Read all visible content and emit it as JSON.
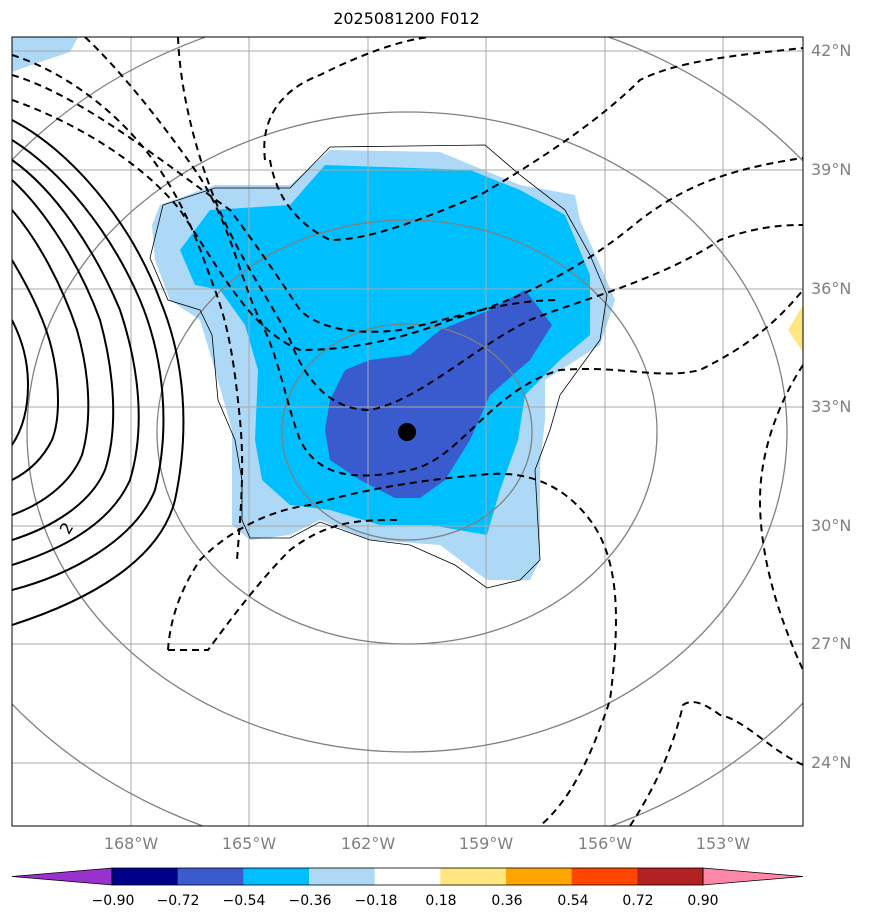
{
  "title": "2025081200 F012",
  "map": {
    "lat_labels": [
      "42°N",
      "39°N",
      "36°N",
      "33°N",
      "30°N",
      "27°N",
      "24°N"
    ],
    "lon_labels": [
      "168°W",
      "165°W",
      "162°W",
      "159°W",
      "156°W",
      "153°W"
    ],
    "contour_label": "2",
    "center_marker": "storm-center"
  },
  "colorbar": {
    "ticks": [
      "−0.90",
      "−0.72",
      "−0.54",
      "−0.36",
      "−0.18",
      "0.18",
      "0.36",
      "0.54",
      "0.72",
      "0.90"
    ],
    "colors": [
      "#9932cc",
      "#00008b",
      "#3a5bcd",
      "#00bfff",
      "#add8f6",
      "#ffffff",
      "#ffe680",
      "#ffa500",
      "#ff4500",
      "#b22222",
      "#ff88aa"
    ]
  }
}
